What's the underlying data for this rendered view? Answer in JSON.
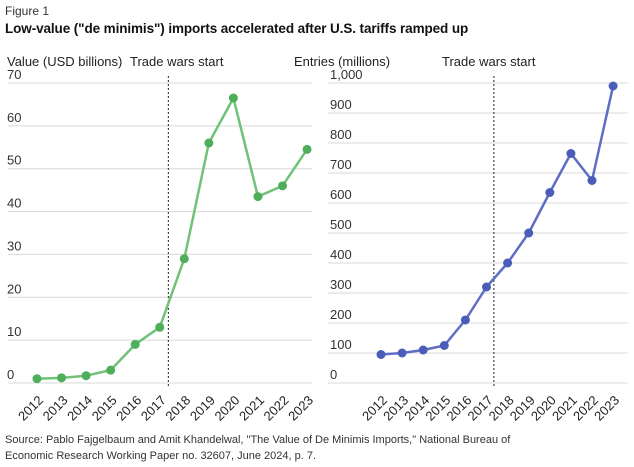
{
  "figure_label": "Figure 1",
  "title": "Low-value (\"de minimis\") imports accelerated after U.S. tariffs ramped up",
  "source": "Source: Pablo Fajgelbaum and Amit Khandelwal, \"The Value of De Minimis Imports,\" National Bureau of Economic Research Working Paper no. 32607, June 2024, p. 7.",
  "colors": {
    "grid": "#d8d8d8",
    "divider": "#222222",
    "text": "#222222",
    "tick_text": "#333333",
    "green_line": "#6fc277",
    "green_point": "#4fae5c",
    "blue_line": "#5f6ec4",
    "blue_point": "#4a5db8"
  },
  "chart_data": [
    {
      "type": "line",
      "ylabel": "Value (USD billions)",
      "annotation": "Trade wars start",
      "annotation_year": 2017.35,
      "categories": [
        "2012",
        "2013",
        "2014",
        "2015",
        "2016",
        "2017",
        "2018",
        "2019",
        "2020",
        "2021",
        "2022",
        "2023"
      ],
      "values": [
        1,
        1.2,
        1.7,
        3,
        9,
        13,
        29,
        56,
        66.5,
        43.5,
        46,
        54.5
      ],
      "ylim": [
        0,
        70
      ],
      "ytick_step": 10,
      "grid": true,
      "legend": "none",
      "line_color": "#6fc277",
      "point_color": "#4fae5c"
    },
    {
      "type": "line",
      "ylabel": "Entries (millions)",
      "annotation": "Trade wars start",
      "annotation_year": 2017.35,
      "categories": [
        "2012",
        "2013",
        "2014",
        "2015",
        "2016",
        "2017",
        "2018",
        "2019",
        "2020",
        "2021",
        "2022",
        "2023"
      ],
      "values": [
        95,
        100,
        110,
        125,
        210,
        320,
        400,
        500,
        635,
        765,
        675,
        990
      ],
      "ylim": [
        0,
        1000
      ],
      "ytick_step": 100,
      "grid": true,
      "legend": "none",
      "line_color": "#5f6ec4",
      "point_color": "#4a5db8"
    }
  ]
}
